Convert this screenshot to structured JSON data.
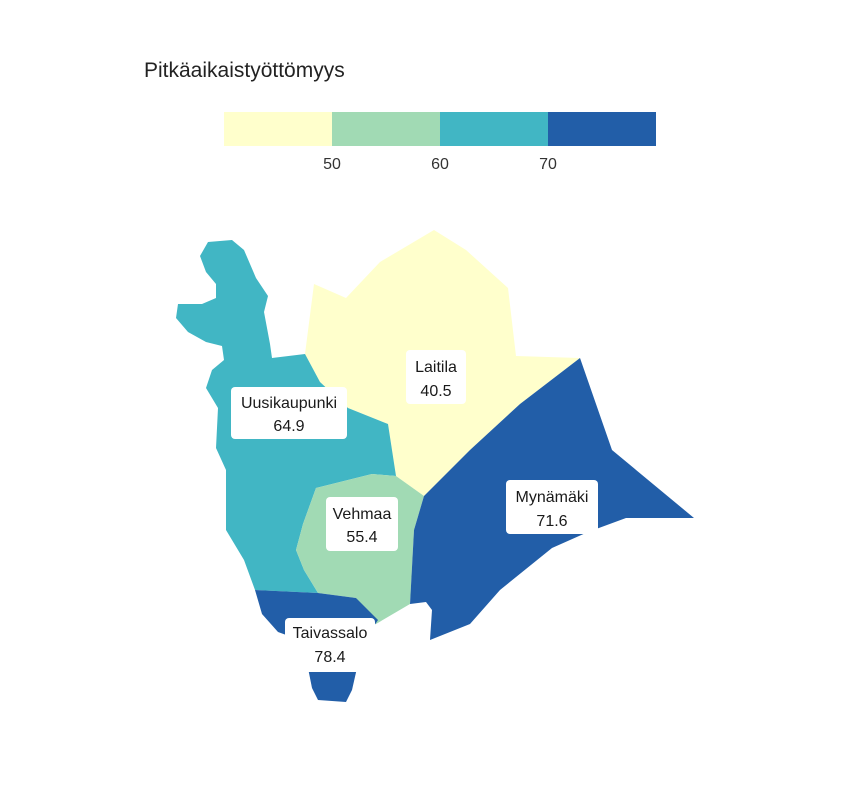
{
  "legend": {
    "title": "Pitkäaikaistyöttömyys",
    "bins": [
      {
        "color": "#ffffcc"
      },
      {
        "color": "#a1dab4"
      },
      {
        "color": "#41b6c4"
      },
      {
        "color": "#225ea8"
      }
    ],
    "ticks": [
      "50",
      "60",
      "70"
    ]
  },
  "regions": [
    {
      "key": "laitila",
      "name": "Laitila",
      "value": "40.5",
      "color": "#ffffcc"
    },
    {
      "key": "uusikaupunki",
      "name": "Uusikaupunki",
      "value": "64.9",
      "color": "#41b6c4"
    },
    {
      "key": "vehmaa",
      "name": "Vehmaa",
      "value": "55.4",
      "color": "#a1dab4"
    },
    {
      "key": "mynamaki",
      "name": "Mynämäki",
      "value": "71.6",
      "color": "#225ea8"
    },
    {
      "key": "taivassalo",
      "name": "Taivassalo",
      "value": "78.4",
      "color": "#225ea8"
    }
  ]
}
